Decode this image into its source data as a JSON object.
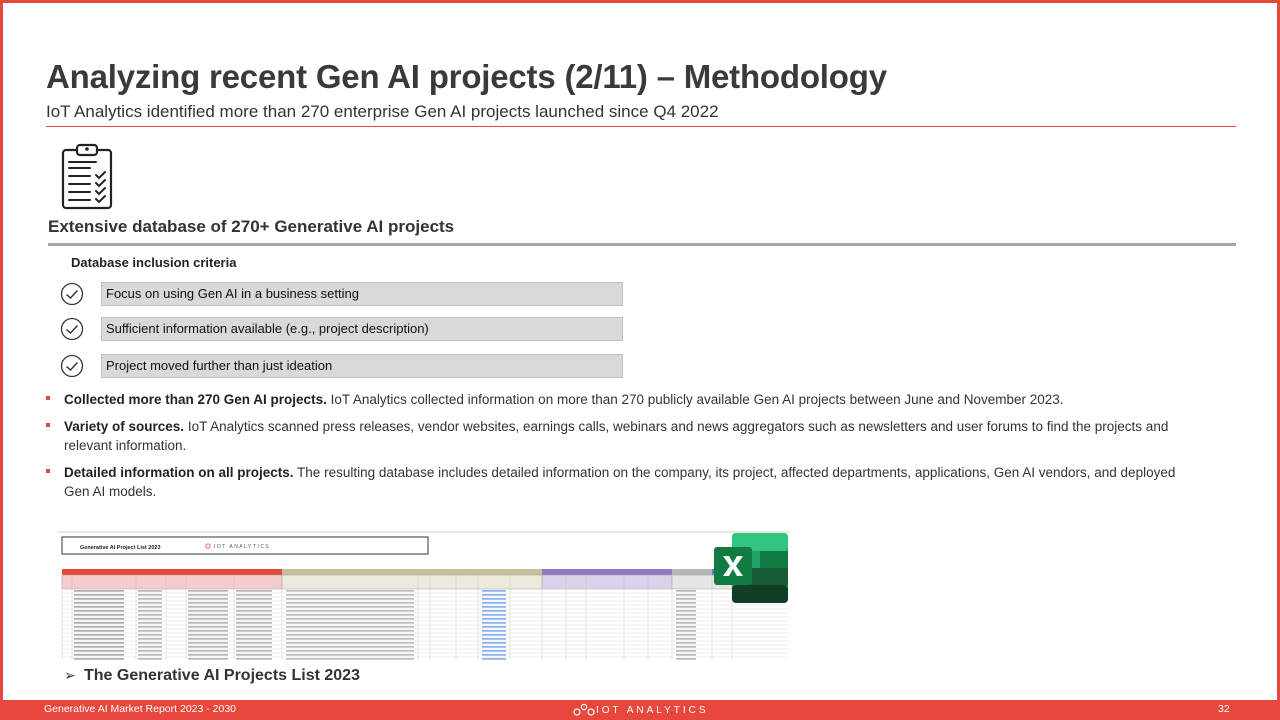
{
  "title": "Analyzing recent Gen AI projects (2/11) – Methodology",
  "subtitle": "IoT Analytics identified more than 270 enterprise Gen AI projects launched since Q4 2022",
  "section_heading": "Extensive database of 270+ Generative AI projects",
  "criteria": {
    "heading": "Database inclusion criteria",
    "items": [
      "Focus on using Gen AI in a business setting",
      "Sufficient information available (e.g., project description)",
      "Project moved further than just ideation"
    ]
  },
  "bullets": [
    {
      "lead": "Collected more than 270 Gen AI projects.",
      "text": " IoT Analytics collected information on more than 270 publicly available Gen AI projects between June and November 2023."
    },
    {
      "lead": "Variety of sources.",
      "text": " IoT Analytics scanned press releases, vendor websites, earnings calls, webinars and news aggregators such as newsletters and user forums to find the projects and relevant information."
    },
    {
      "lead": "Detailed information on all projects.",
      "text": " The resulting database includes detailed information on the company, its project, affected departments, applications, Gen AI vendors, and deployed Gen AI models."
    }
  ],
  "spreadsheet": {
    "title": "Generative AI Project List 2023",
    "logo_text": "IOT ANALYTICS"
  },
  "caption": "The Generative AI Projects List 2023",
  "footer": {
    "report": "Generative AI Market Report 2023 - 2030",
    "logo_text": "IOT ANALYTICS",
    "page": "32"
  },
  "colors": {
    "accent": "#e8473d",
    "box_fill": "#d9d9d9",
    "excel_green": "#1d6f42"
  },
  "icons": {
    "clipboard": "clipboard-checklist-icon",
    "check": "check-circle-icon",
    "excel": "excel-icon",
    "arrow": "arrow-right-icon"
  }
}
